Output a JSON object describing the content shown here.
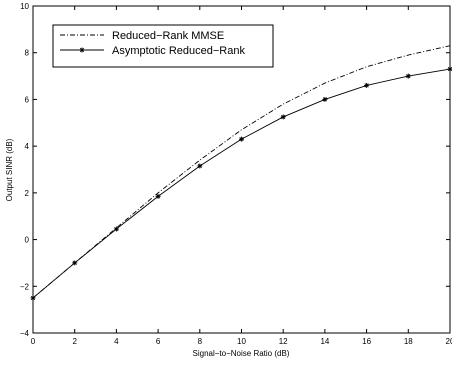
{
  "chart_data": {
    "type": "line",
    "title": "",
    "xlabel": "Signal−to−Noise Ratio (dB)",
    "ylabel": "Output SINR (dB)",
    "xlim": [
      0,
      20
    ],
    "ylim": [
      -4,
      10
    ],
    "x_ticks": [
      "0",
      "2",
      "4",
      "6",
      "8",
      "10",
      "12",
      "14",
      "16",
      "18",
      "20"
    ],
    "y_ticks": [
      "−4",
      "−2",
      "0",
      "2",
      "4",
      "6",
      "8",
      "10"
    ],
    "grid": false,
    "legend_position": "top-left",
    "x": [
      0,
      2,
      4,
      6,
      8,
      10,
      12,
      14,
      16,
      18,
      20
    ],
    "series": [
      {
        "name": "Reduced−Rank MMSE",
        "style": "dash-dot",
        "marker": "none",
        "color": "#000000",
        "values": [
          -2.5,
          -1.0,
          0.5,
          2.0,
          3.4,
          4.7,
          5.8,
          6.7,
          7.4,
          7.9,
          8.3
        ]
      },
      {
        "name": "Asymptotic Reduced−Rank",
        "style": "solid",
        "marker": "asterisk",
        "color": "#000000",
        "values": [
          -2.5,
          -1.0,
          0.45,
          1.85,
          3.15,
          4.3,
          5.25,
          6.0,
          6.6,
          7.0,
          7.3
        ]
      }
    ]
  }
}
